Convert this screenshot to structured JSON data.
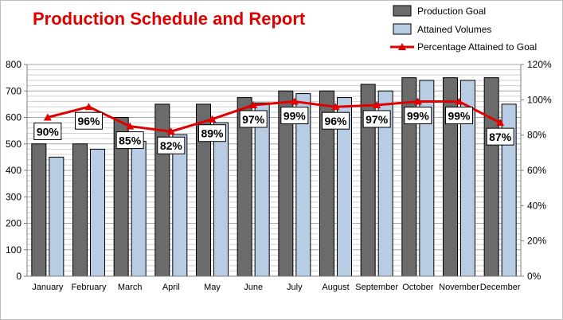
{
  "chart_data": {
    "type": "bar",
    "title": "Production Schedule and Report",
    "categories": [
      "January",
      "February",
      "March",
      "April",
      "May",
      "June",
      "July",
      "August",
      "September",
      "October",
      "November",
      "December"
    ],
    "series": [
      {
        "name": "Production Goal",
        "type": "bar",
        "axis": "left",
        "color": "#6b6b6b",
        "values": [
          500,
          500,
          600,
          650,
          650,
          675,
          700,
          700,
          725,
          750,
          750,
          750
        ]
      },
      {
        "name": "Attained  Volumes",
        "type": "bar",
        "axis": "left",
        "color": "#b8cce4",
        "values": [
          450,
          480,
          510,
          535,
          580,
          655,
          690,
          675,
          700,
          740,
          740,
          650
        ]
      },
      {
        "name": "Percentage Attained to Goal",
        "type": "line",
        "axis": "right",
        "color": "#e00000",
        "values": [
          90,
          96,
          85,
          82,
          89,
          97,
          99,
          96,
          97,
          99,
          99,
          87
        ],
        "labels": [
          "90%",
          "96%",
          "85%",
          "82%",
          "89%",
          "97%",
          "99%",
          "96%",
          "97%",
          "99%",
          "99%",
          "87%"
        ]
      }
    ],
    "y_left": {
      "min": 0,
      "max": 800,
      "step": 100,
      "ticks": [
        "0",
        "100",
        "200",
        "300",
        "400",
        "500",
        "600",
        "700",
        "800"
      ]
    },
    "y_right": {
      "min": 0,
      "max": 120,
      "step": 20,
      "ticks": [
        "0%",
        "20%",
        "40%",
        "60%",
        "80%",
        "100%",
        "120%"
      ]
    },
    "grid": true,
    "legend": "top-right"
  }
}
